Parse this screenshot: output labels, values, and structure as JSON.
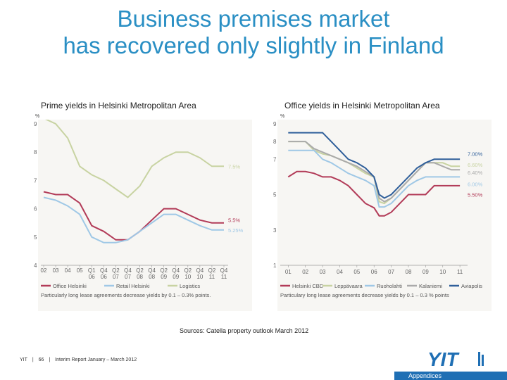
{
  "title_lines": [
    "Business premises market",
    "has recovered only slightly in Finland"
  ],
  "source": "Sources: Catella property outlook March 2012",
  "footer": {
    "brand": "YIT",
    "sep1": "|",
    "page": "66",
    "sep2": "|",
    "report": "Interim Report January – March 2012"
  },
  "appendix_label": "Appendices",
  "logo_text": "YIT",
  "chart_data": [
    {
      "type": "line",
      "title": "Prime yields in Helsinki Metropolitan Area",
      "unit": "%",
      "ylim": [
        4,
        9
      ],
      "yticks": [
        "4",
        "5",
        "6",
        "7",
        "8",
        "9"
      ],
      "categories": [
        "02",
        "03",
        "04",
        "05",
        "Q1 06",
        "Q4 06",
        "Q2 07",
        "Q4 07",
        "Q2 08",
        "Q4 08",
        "Q2 09",
        "Q4 09",
        "Q2 10",
        "Q4 10",
        "Q2 11",
        "Q4 11"
      ],
      "x_top": [
        "02",
        "03",
        "04",
        "05",
        "Q1",
        "Q4",
        "Q2",
        "Q4",
        "Q2",
        "Q4",
        "Q2",
        "Q4",
        "Q2",
        "Q4",
        "Q2",
        "Q4"
      ],
      "x_bottom": [
        "",
        "",
        "",
        "",
        "06",
        "06",
        "07",
        "07",
        "08",
        "08",
        "09",
        "09",
        "10",
        "10",
        "11",
        "11"
      ],
      "series": [
        {
          "name": "Office Helsinki",
          "color": "#b23b58",
          "x": [
            0,
            1,
            2,
            3,
            4,
            5,
            6,
            7,
            8,
            9,
            10,
            11,
            12,
            13,
            14,
            15
          ],
          "values": [
            6.6,
            6.5,
            6.5,
            6.2,
            5.4,
            5.2,
            4.9,
            4.9,
            5.2,
            5.6,
            6.0,
            6.0,
            5.8,
            5.6,
            5.5,
            5.5
          ]
        },
        {
          "name": "Retail Helsinki",
          "color": "#9fc8e6",
          "x": [
            0,
            1,
            2,
            3,
            4,
            5,
            6,
            7,
            8,
            9,
            10,
            11,
            12,
            13,
            14,
            15
          ],
          "values": [
            6.4,
            6.3,
            6.1,
            5.8,
            5.0,
            4.8,
            4.8,
            4.9,
            5.2,
            5.5,
            5.8,
            5.8,
            5.6,
            5.4,
            5.25,
            5.25
          ]
        },
        {
          "name": "Logistics",
          "color": "#c8d3a2",
          "x": [
            0,
            1,
            2,
            3,
            4,
            5,
            6,
            7,
            8,
            9,
            10,
            11,
            12,
            13,
            14,
            15
          ],
          "values": [
            9.2,
            9.0,
            8.5,
            7.5,
            7.2,
            7.0,
            6.7,
            6.4,
            6.8,
            7.5,
            7.8,
            8.0,
            8.0,
            7.8,
            7.5,
            7.5
          ]
        }
      ],
      "end_labels": [
        "7.5%",
        "5.5%",
        "5.25%"
      ],
      "note": "Particularly long lease agreements decrease yields by 0.1 – 0.3% points."
    },
    {
      "type": "line",
      "title": "Office yields in Helsinki Metropolitan Area",
      "unit": "%",
      "ylim": [
        1,
        9
      ],
      "yticks": [
        "1",
        "3",
        "5",
        "7",
        "8",
        "9"
      ],
      "categories": [
        "01",
        "02",
        "03",
        "04",
        "05",
        "06",
        "07",
        "08",
        "09",
        "10",
        "11"
      ],
      "series": [
        {
          "name": "Helsinki CBD",
          "color": "#b23b58",
          "x": [
            2001,
            2001.5,
            2002,
            2002.5,
            2003,
            2003.5,
            2004,
            2004.5,
            2005,
            2005.5,
            2006,
            2006.3,
            2006.6,
            2007,
            2007.5,
            2008,
            2008.5,
            2009,
            2009.5,
            2010,
            2010.5,
            2011
          ],
          "values": [
            6.0,
            6.3,
            6.3,
            6.2,
            6.0,
            6.0,
            5.8,
            5.5,
            5.0,
            4.5,
            4.25,
            3.8,
            3.8,
            4.0,
            4.5,
            5.0,
            5.0,
            5.0,
            5.5,
            5.5,
            5.5,
            5.5
          ]
        },
        {
          "name": "Leppävaara",
          "color": "#c8d3a2",
          "x": [
            2001,
            2001.5,
            2002,
            2002.5,
            2003,
            2003.5,
            2004,
            2004.5,
            2005,
            2005.5,
            2006,
            2006.3,
            2006.6,
            2007,
            2007.5,
            2008,
            2008.5,
            2009,
            2009.5,
            2010,
            2010.5,
            2011
          ],
          "values": [
            8.0,
            8.0,
            8.0,
            7.5,
            7.3,
            7.2,
            7.0,
            6.8,
            6.5,
            6.2,
            6.0,
            4.6,
            4.5,
            4.8,
            5.3,
            5.8,
            6.3,
            6.8,
            6.8,
            6.8,
            6.6,
            6.6
          ]
        },
        {
          "name": "Ruoholahti",
          "color": "#9fc8e6",
          "x": [
            2001,
            2001.5,
            2002,
            2002.5,
            2003,
            2003.5,
            2004,
            2004.5,
            2005,
            2005.5,
            2006,
            2006.3,
            2006.6,
            2007,
            2007.5,
            2008,
            2008.5,
            2009,
            2009.5,
            2010,
            2010.5,
            2011
          ],
          "values": [
            7.5,
            7.5,
            7.5,
            7.5,
            7.0,
            6.8,
            6.5,
            6.2,
            6.0,
            5.8,
            5.5,
            4.3,
            4.3,
            4.5,
            5.0,
            5.5,
            5.8,
            6.0,
            6.0,
            6.0,
            6.0,
            6.0
          ]
        },
        {
          "name": "Kalaniemi",
          "color": "#aaaaaa",
          "x": [
            2001,
            2001.5,
            2002,
            2002.5,
            2003,
            2003.5,
            2004,
            2004.5,
            2005,
            2005.5,
            2006,
            2006.3,
            2006.6,
            2007,
            2007.5,
            2008,
            2008.5,
            2009,
            2009.5,
            2010,
            2010.5,
            2011
          ],
          "values": [
            8.0,
            8.0,
            8.0,
            7.6,
            7.4,
            7.2,
            7.0,
            6.8,
            6.6,
            6.3,
            6.0,
            4.8,
            4.6,
            4.8,
            5.3,
            5.8,
            6.3,
            6.8,
            6.8,
            6.6,
            6.4,
            6.4
          ]
        },
        {
          "name": "Aviapolis",
          "color": "#2f5f9a",
          "x": [
            2001,
            2001.5,
            2002,
            2002.5,
            2003,
            2003.5,
            2004,
            2004.5,
            2005,
            2005.5,
            2006,
            2006.3,
            2006.6,
            2007,
            2007.5,
            2008,
            2008.5,
            2009,
            2009.5,
            2010,
            2010.5,
            2011
          ],
          "values": [
            8.5,
            8.5,
            8.5,
            8.5,
            8.5,
            8.0,
            7.5,
            7.0,
            6.8,
            6.5,
            6.0,
            5.0,
            4.8,
            5.0,
            5.5,
            6.0,
            6.5,
            6.8,
            7.0,
            7.0,
            7.0,
            7.0
          ]
        }
      ],
      "end_labels": [
        "7.00%",
        "6.60%",
        "6.40%",
        "6.00%",
        "5.50%"
      ],
      "note": "Particulary long lease agreements decrease yields by 0.1 – 0.3 % points"
    }
  ]
}
